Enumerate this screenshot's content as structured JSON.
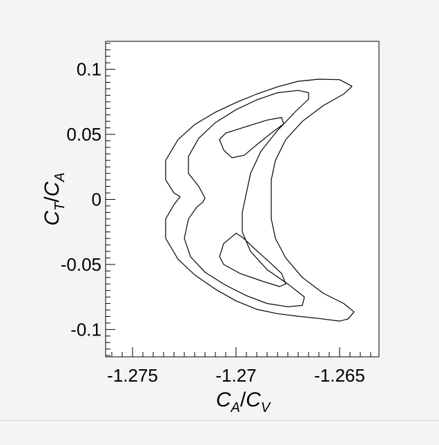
{
  "chart_data": {
    "type": "contour",
    "xlabel": {
      "main": "C",
      "sub1": "A",
      "sep": "/",
      "main2": "C",
      "sub2": "V"
    },
    "ylabel": {
      "main": "C",
      "sub1": "T",
      "sep": "/",
      "main2": "C",
      "sub2": "A"
    },
    "xlim": [
      -1.2763,
      -1.2631
    ],
    "ylim": [
      -0.121,
      0.1215
    ],
    "x_ticks": [
      {
        "value": -1.275,
        "label": "-1.275"
      },
      {
        "value": -1.27,
        "label": "-1.27"
      },
      {
        "value": -1.265,
        "label": "-1.265"
      }
    ],
    "y_ticks": [
      {
        "value": 0.1,
        "label": "0.1"
      },
      {
        "value": 0.05,
        "label": "0.05"
      },
      {
        "value": 0,
        "label": "0"
      },
      {
        "value": -0.05,
        "label": "-0.05"
      },
      {
        "value": -0.1,
        "label": "-0.1"
      }
    ],
    "grid": false,
    "contours": [
      {
        "level": "outer",
        "points": [
          [
            -1.2644,
            0.087
          ],
          [
            -1.265,
            0.092
          ],
          [
            -1.266,
            0.0924
          ],
          [
            -1.267,
            0.0908
          ],
          [
            -1.268,
            0.0865
          ],
          [
            -1.269,
            0.081
          ],
          [
            -1.27,
            0.0745
          ],
          [
            -1.271,
            0.067
          ],
          [
            -1.272,
            0.0575
          ],
          [
            -1.2728,
            0.046
          ],
          [
            -1.2734,
            0.03
          ],
          [
            -1.2734,
            0.015
          ],
          [
            -1.273,
            0.005
          ],
          [
            -1.2727,
            0.002
          ],
          [
            -1.273,
            -0.004
          ],
          [
            -1.2734,
            -0.015
          ],
          [
            -1.2734,
            -0.03
          ],
          [
            -1.2728,
            -0.046
          ],
          [
            -1.272,
            -0.058
          ],
          [
            -1.271,
            -0.069
          ],
          [
            -1.27,
            -0.078
          ],
          [
            -1.269,
            -0.0845
          ],
          [
            -1.268,
            -0.0878
          ],
          [
            -1.267,
            -0.0898
          ],
          [
            -1.266,
            -0.0915
          ],
          [
            -1.265,
            -0.0935
          ],
          [
            -1.2646,
            -0.092
          ],
          [
            -1.2643,
            -0.0865
          ],
          [
            -1.2648,
            -0.08
          ],
          [
            -1.2658,
            -0.072
          ],
          [
            -1.2668,
            -0.06
          ],
          [
            -1.2676,
            -0.045
          ],
          [
            -1.2681,
            -0.03
          ],
          [
            -1.2683,
            -0.015
          ],
          [
            -1.2683,
            0.0
          ],
          [
            -1.2683,
            0.015
          ],
          [
            -1.2681,
            0.03
          ],
          [
            -1.2676,
            0.046
          ],
          [
            -1.2668,
            0.06
          ],
          [
            -1.2658,
            0.072
          ],
          [
            -1.2648,
            0.081
          ],
          [
            -1.2644,
            0.087
          ]
        ]
      },
      {
        "level": "middle",
        "points": [
          [
            -1.2665,
            0.082
          ],
          [
            -1.267,
            0.0838
          ],
          [
            -1.268,
            0.082
          ],
          [
            -1.269,
            0.0765
          ],
          [
            -1.27,
            0.069
          ],
          [
            -1.271,
            0.059
          ],
          [
            -1.2718,
            0.047
          ],
          [
            -1.2723,
            0.033
          ],
          [
            -1.2723,
            0.02
          ],
          [
            -1.2718,
            0.01
          ],
          [
            -1.2715,
            0.001
          ],
          [
            -1.2716,
            -0.002
          ],
          [
            -1.2719,
            -0.006
          ],
          [
            -1.2723,
            -0.015
          ],
          [
            -1.2725,
            -0.03
          ],
          [
            -1.2722,
            -0.044
          ],
          [
            -1.2715,
            -0.056
          ],
          [
            -1.2705,
            -0.066
          ],
          [
            -1.2695,
            -0.074
          ],
          [
            -1.2685,
            -0.08
          ],
          [
            -1.2675,
            -0.0825
          ],
          [
            -1.2668,
            -0.0815
          ],
          [
            -1.2667,
            -0.075
          ],
          [
            -1.2675,
            -0.065
          ],
          [
            -1.2685,
            -0.054
          ],
          [
            -1.2693,
            -0.04
          ],
          [
            -1.2697,
            -0.025
          ],
          [
            -1.2697,
            -0.01
          ],
          [
            -1.2695,
            0.005
          ],
          [
            -1.2693,
            0.02
          ],
          [
            -1.2688,
            0.037
          ],
          [
            -1.268,
            0.053
          ],
          [
            -1.2671,
            0.068
          ],
          [
            -1.2665,
            0.077
          ],
          [
            -1.2665,
            0.082
          ]
        ]
      },
      {
        "level": "inner-upper",
        "points": [
          [
            -1.2702,
            0.032
          ],
          [
            -1.2706,
            0.038
          ],
          [
            -1.2708,
            0.046
          ],
          [
            -1.2705,
            0.051
          ],
          [
            -1.2695,
            0.056
          ],
          [
            -1.2685,
            0.061
          ],
          [
            -1.2678,
            0.063
          ],
          [
            -1.2677,
            0.058
          ],
          [
            -1.2683,
            0.051
          ],
          [
            -1.269,
            0.042
          ],
          [
            -1.2696,
            0.034
          ],
          [
            -1.2702,
            0.032
          ]
        ]
      },
      {
        "level": "inner-lower",
        "points": [
          [
            -1.27,
            -0.026
          ],
          [
            -1.2706,
            -0.034
          ],
          [
            -1.2708,
            -0.044
          ],
          [
            -1.2706,
            -0.05
          ],
          [
            -1.2698,
            -0.057
          ],
          [
            -1.2688,
            -0.0625
          ],
          [
            -1.2679,
            -0.067
          ],
          [
            -1.2676,
            -0.065
          ],
          [
            -1.2678,
            -0.057
          ],
          [
            -1.2684,
            -0.048
          ],
          [
            -1.2691,
            -0.038
          ],
          [
            -1.2697,
            -0.029
          ],
          [
            -1.27,
            -0.026
          ]
        ]
      }
    ]
  }
}
